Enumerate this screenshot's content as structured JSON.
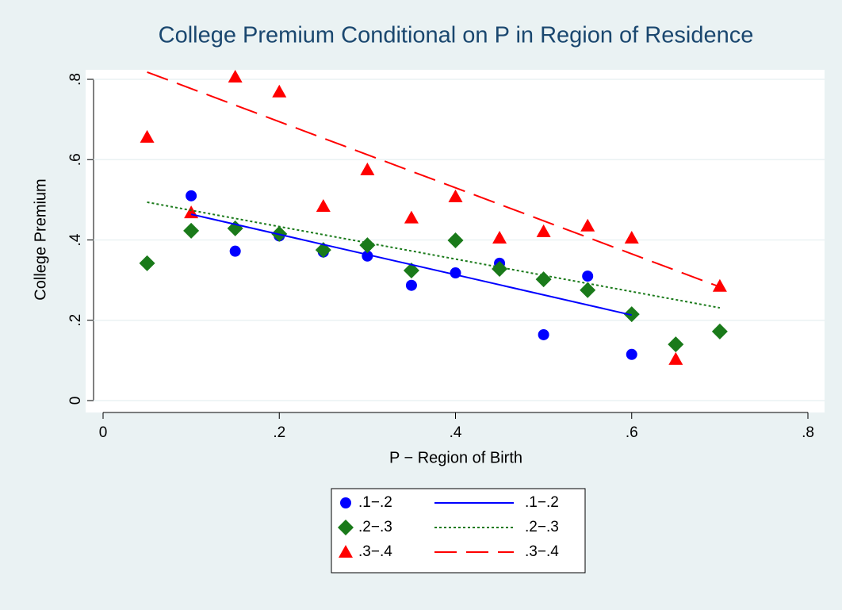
{
  "chart_data": {
    "type": "scatter",
    "title": "College Premium Conditional on P in Region of Residence",
    "x_label": "P − Region of Birth",
    "y_label": "College Premium",
    "xlim": [
      0,
      0.8
    ],
    "ylim": [
      0,
      0.8
    ],
    "xticks": [
      0,
      {
        "value": 0.2,
        "label": ".2"
      },
      {
        "value": 0.4,
        "label": ".4"
      },
      {
        "value": 0.6,
        "label": ".6"
      },
      {
        "value": 0.8,
        "label": ".8"
      }
    ],
    "yticks": [
      0,
      {
        "value": 0.2,
        "label": ".2"
      },
      {
        "value": 0.4,
        "label": ".4"
      },
      {
        "value": 0.6,
        "label": ".6"
      },
      {
        "value": 0.8,
        "label": ".8"
      }
    ],
    "grid": true,
    "series": [
      {
        "name": ".1−.2",
        "color": "#0000ff",
        "marker": "circle",
        "x": [
          0.1,
          0.15,
          0.2,
          0.25,
          0.3,
          0.35,
          0.4,
          0.45,
          0.5,
          0.55,
          0.6
        ],
        "values": [
          0.51,
          0.372,
          0.41,
          0.37,
          0.36,
          0.287,
          0.318,
          0.342,
          0.164,
          0.31,
          0.115
        ]
      },
      {
        "name": ".2−.3",
        "color": "#1a7a1a",
        "marker": "diamond",
        "x": [
          0.05,
          0.1,
          0.15,
          0.2,
          0.25,
          0.3,
          0.35,
          0.4,
          0.45,
          0.5,
          0.55,
          0.6,
          0.65,
          0.7
        ],
        "values": [
          0.342,
          0.423,
          0.429,
          0.415,
          0.375,
          0.387,
          0.324,
          0.399,
          0.328,
          0.302,
          0.275,
          0.215,
          0.14,
          0.172
        ]
      },
      {
        "name": ".3−.4",
        "color": "#ff0000",
        "marker": "triangle",
        "x": [
          0.05,
          0.1,
          0.15,
          0.2,
          0.25,
          0.3,
          0.35,
          0.4,
          0.45,
          0.5,
          0.55,
          0.6,
          0.65,
          0.7
        ],
        "values": [
          0.656,
          0.468,
          0.806,
          0.769,
          0.484,
          0.575,
          0.455,
          0.508,
          0.405,
          0.421,
          0.435,
          0.405,
          0.103,
          0.285
        ]
      },
      {
        "name": ".1−.2",
        "color": "#0000ff",
        "dash": "solid",
        "x": [
          0.1,
          0.6
        ],
        "values": [
          0.464,
          0.213
        ]
      },
      {
        "name": ".2−.3",
        "color": "#1a7a1a",
        "dash": "dot",
        "x": [
          0.05,
          0.7
        ],
        "values": [
          0.494,
          0.231
        ]
      },
      {
        "name": ".3−.4",
        "color": "#ff0000",
        "dash": "longdash",
        "x": [
          0.05,
          0.7
        ],
        "values": [
          0.818,
          0.283
        ]
      }
    ]
  }
}
